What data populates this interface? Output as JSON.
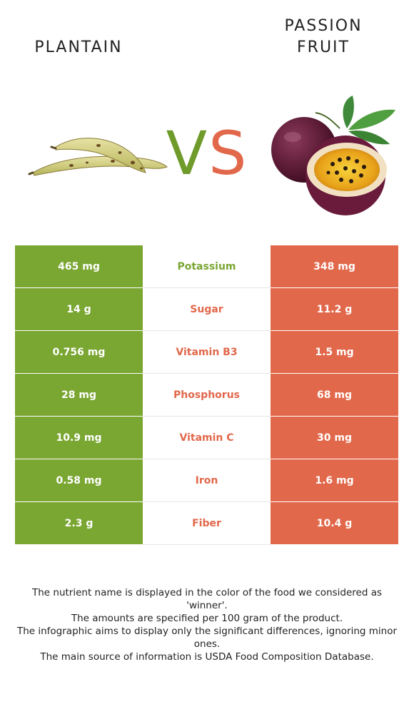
{
  "foods": {
    "left": {
      "name": "PLANTAIN",
      "color": "#7aa632"
    },
    "right": {
      "name_line1": "PASSION",
      "name_line2": "FRUIT",
      "color": "#e2684b"
    }
  },
  "vs": {
    "v": "V",
    "s": "S"
  },
  "rows": [
    {
      "nutrient": "Potassium",
      "left": "465 mg",
      "right": "348 mg",
      "winner": "left"
    },
    {
      "nutrient": "Sugar",
      "left": "14 g",
      "right": "11.2 g",
      "winner": "right"
    },
    {
      "nutrient": "Vitamin B3",
      "left": "0.756 mg",
      "right": "1.5 mg",
      "winner": "right"
    },
    {
      "nutrient": "Phosphorus",
      "left": "28 mg",
      "right": "68 mg",
      "winner": "right"
    },
    {
      "nutrient": "Vitamin C",
      "left": "10.9 mg",
      "right": "30 mg",
      "winner": "right"
    },
    {
      "nutrient": "Iron",
      "left": "0.58 mg",
      "right": "1.6 mg",
      "winner": "right"
    },
    {
      "nutrient": "Fiber",
      "left": "2.3 g",
      "right": "10.4 g",
      "winner": "right"
    }
  ],
  "footnotes": [
    "The nutrient name is displayed in the color of the food we considered as 'winner'.",
    "The amounts are specified per 100 gram of the product.",
    "The infographic aims to display only the significant differences, ignoring minor ones.",
    "The main source of information is USDA Food Composition Database."
  ]
}
